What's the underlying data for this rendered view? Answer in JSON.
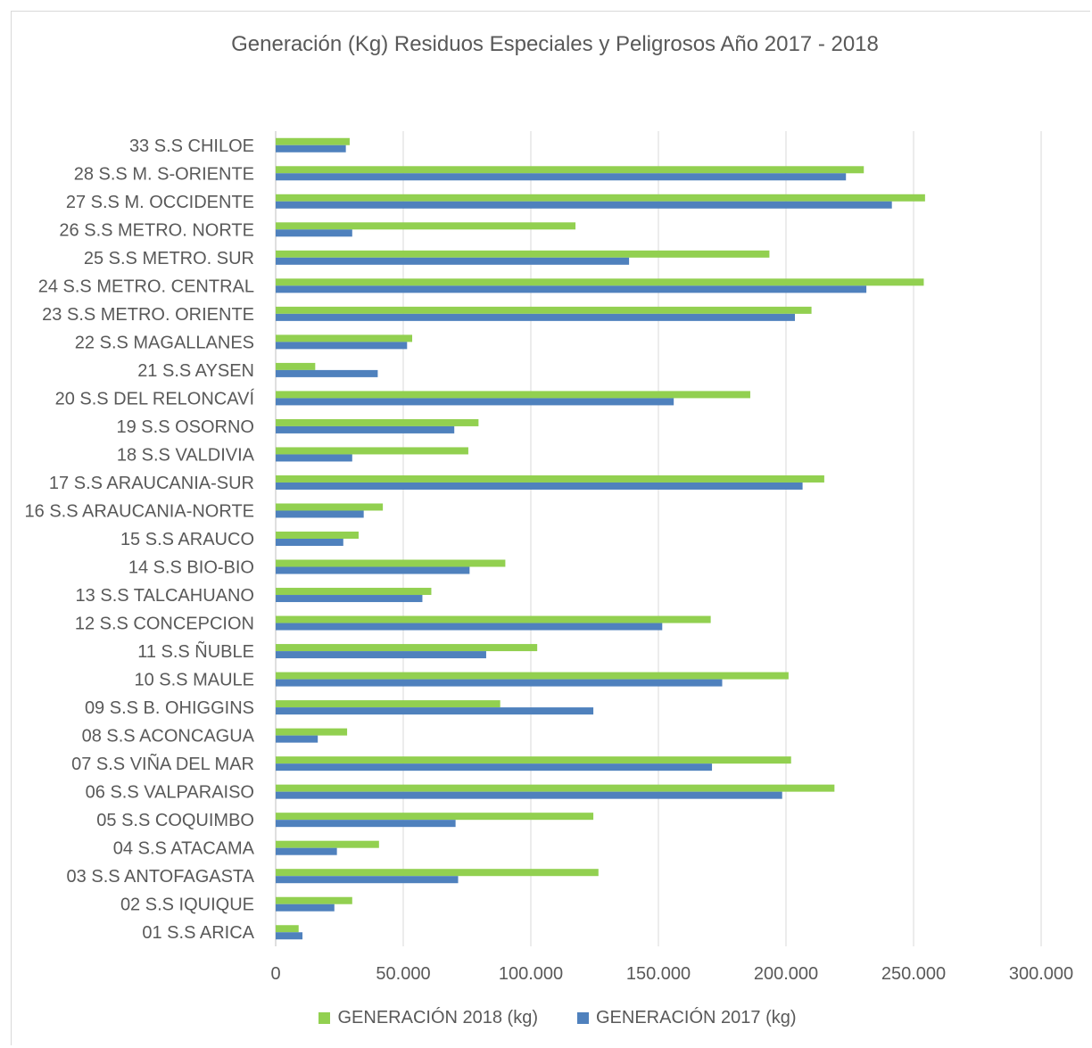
{
  "chart_data": {
    "type": "bar",
    "orientation": "horizontal",
    "title": "Generación (Kg) Residuos Especiales y Peligrosos  Año 2017 - 2018",
    "xlabel": "",
    "ylabel": "",
    "xlim": [
      0,
      300000
    ],
    "ticks": [
      "0",
      "50.000",
      "100.000",
      "150.000",
      "200.000",
      "250.000",
      "300.000"
    ],
    "tick_values": [
      0,
      50000,
      100000,
      150000,
      200000,
      250000,
      300000
    ],
    "grid": true,
    "legend_position": "bottom",
    "categories": [
      "33 S.S CHILOE",
      "28 S.S M. S-ORIENTE",
      "27 S.S M. OCCIDENTE",
      "26 S.S METRO. NORTE",
      "25 S.S METRO. SUR",
      "24 S.S METRO. CENTRAL",
      "23 S.S METRO. ORIENTE",
      "22 S.S MAGALLANES",
      "21 S.S AYSEN",
      "20 S.S DEL RELONCAVÍ",
      "19 S.S OSORNO",
      "18 S.S VALDIVIA",
      "17 S.S ARAUCANIA-SUR",
      "16 S.S ARAUCANIA-NORTE",
      "15 S.S ARAUCO",
      "14 S.S BIO-BIO",
      "13 S.S TALCAHUANO",
      "12 S.S CONCEPCION",
      "11 S.S ÑUBLE",
      "10 S.S MAULE",
      "09 S.S B. OHIGGINS",
      "08 S.S ACONCAGUA",
      "07 S.S VIÑA DEL MAR",
      "06 S.S VALPARAISO",
      "05 S.S COQUIMBO",
      "04 S.S ATACAMA",
      "03 S.S ANTOFAGASTA",
      "02 S.S IQUIQUE",
      "01 S.S ARICA"
    ],
    "series": [
      {
        "name": "GENERACIÓN 2018  (kg)",
        "color": "#92d050",
        "values": [
          29000,
          230500,
          254500,
          117500,
          193500,
          254000,
          210000,
          53500,
          15500,
          186000,
          79500,
          75500,
          215000,
          42000,
          32500,
          90000,
          61000,
          170500,
          102500,
          201000,
          88000,
          28000,
          202000,
          219000,
          124500,
          40500,
          126500,
          30000,
          9000
        ]
      },
      {
        "name": "GENERACIÓN 2017  (kg)",
        "color": "#4f81bd",
        "values": [
          27500,
          223500,
          241500,
          30000,
          138500,
          231500,
          203500,
          51500,
          40000,
          156000,
          70000,
          30000,
          206500,
          34500,
          26500,
          76000,
          57500,
          151500,
          82500,
          175000,
          124500,
          16500,
          171000,
          198500,
          70500,
          24000,
          71500,
          23000,
          10500
        ]
      }
    ]
  }
}
